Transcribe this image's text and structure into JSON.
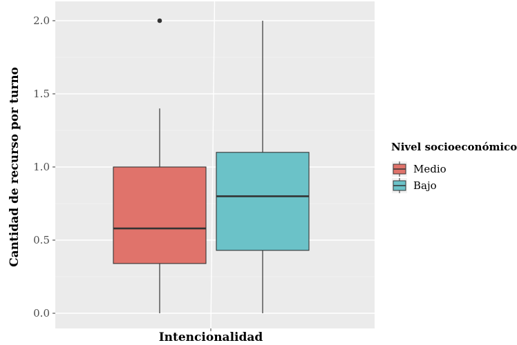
{
  "chart_data": {
    "type": "boxplot",
    "xlabel": "Intencionalidad",
    "ylabel": "Cantidad de recurso por turno",
    "ylim": [
      0.0,
      2.0
    ],
    "yticks": [
      "0.0",
      "0.5",
      "1.0",
      "1.5",
      "2.0"
    ],
    "grid": true,
    "legend": {
      "title": "Nivel socioeconómico",
      "position": "right",
      "entries": [
        {
          "label": "Medio",
          "color": "#E0736B"
        },
        {
          "label": "Bajo",
          "color": "#6BC2C8"
        }
      ]
    },
    "series": [
      {
        "name": "Medio",
        "color": "#E0736B",
        "min": 0.0,
        "q1": 0.34,
        "median": 0.58,
        "q3": 1.0,
        "max": 1.4,
        "outliers": [
          2.0
        ]
      },
      {
        "name": "Bajo",
        "color": "#6BC2C8",
        "min": 0.0,
        "q1": 0.43,
        "median": 0.8,
        "q3": 1.1,
        "max": 2.0,
        "outliers": []
      }
    ]
  }
}
